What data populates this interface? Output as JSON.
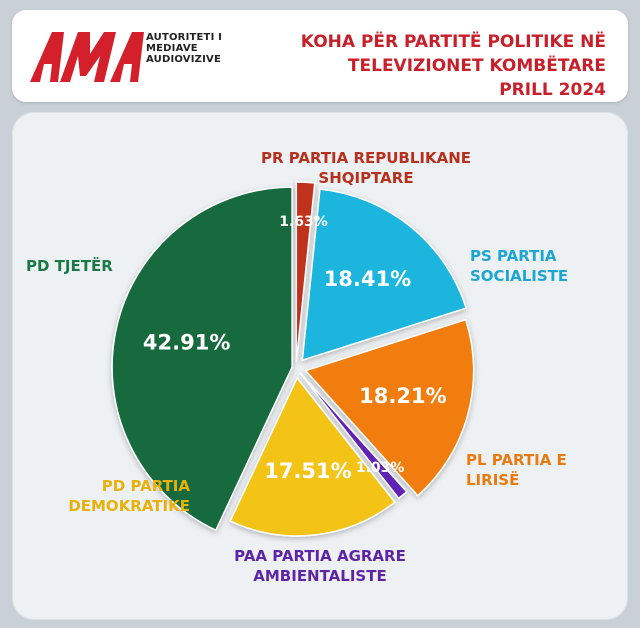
{
  "header": {
    "logo": {
      "mark": "AMA",
      "lines": [
        "AUTORITETI I",
        "MEDIAVE",
        "AUDIOVIZIVE"
      ]
    },
    "title_lines": [
      "KOHA PËR PARTITË POLITIKE NË",
      "TELEVIZIONET KOMBËTARE",
      "PRILL 2024"
    ]
  },
  "chart_data": {
    "type": "pie",
    "title": "KOHA PËR PARTITË POLITIKE NË TELEVIZIONET KOMBËTARE PRILL 2024",
    "unit": "%",
    "slices": [
      {
        "label_lines": [
          "PR PARTIA REPUBLIKANE",
          "SHQIPTARE"
        ],
        "value": 1.63,
        "value_label": "1.63%",
        "color": "#c0301f",
        "label_color": "#b6301c"
      },
      {
        "label_lines": [
          "PS PARTIA",
          "SOCIALISTE"
        ],
        "value": 18.41,
        "value_label": "18.41%",
        "color": "#1fb5dd",
        "label_color": "#1ea6d3"
      },
      {
        "label_lines": [
          "PL PARTIA E",
          "LIRISË"
        ],
        "value": 18.21,
        "value_label": "18.21%",
        "color": "#f07d10",
        "label_color": "#ea7a10"
      },
      {
        "label_lines": [
          "PAA PARTIA AGRARE",
          "AMBIENTALISTE"
        ],
        "value": 1.03,
        "value_label": "1.03%",
        "color": "#5e23b2",
        "label_color": "#5d24a6"
      },
      {
        "label_lines": [
          "PD PARTIA",
          "DEMOKRATIKE"
        ],
        "value": 17.51,
        "value_label": "17.51%",
        "color": "#f3c318",
        "label_color": "#e8b10c"
      },
      {
        "label_lines": [
          "PD TJETËR"
        ],
        "value": 42.91,
        "value_label": "42.91%",
        "color": "#176b3c",
        "label_color": "#1a7a45"
      }
    ],
    "legend": "none"
  }
}
